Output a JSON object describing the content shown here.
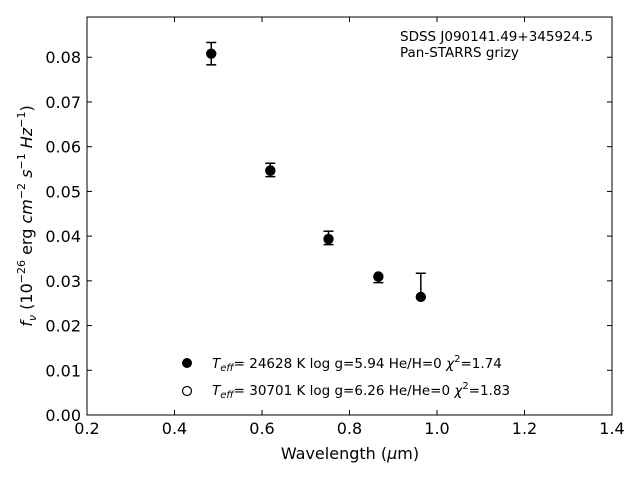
{
  "chart_data": {
    "type": "scatter",
    "title": "",
    "annotation": [
      "SDSS J090141.49+345924.5",
      "Pan-STARRS grizy"
    ],
    "xlabel": "Wavelength (μm)",
    "ylabel": "f_ν (10^-26 erg cm^-2 s^-1 Hz^-1)",
    "xlim": [
      0.2,
      1.4
    ],
    "ylim": [
      0.0,
      0.089
    ],
    "xticks": [
      "0.2",
      "0.4",
      "0.6",
      "0.8",
      "1.0",
      "1.2",
      "1.4"
    ],
    "xtick_values": [
      0.2,
      0.4,
      0.6,
      0.8,
      1.0,
      1.2,
      1.4
    ],
    "yticks": [
      "0.00",
      "0.01",
      "0.02",
      "0.03",
      "0.04",
      "0.05",
      "0.06",
      "0.07",
      "0.08"
    ],
    "ytick_values": [
      0.0,
      0.01,
      0.02,
      0.03,
      0.04,
      0.05,
      0.06,
      0.07,
      0.08
    ],
    "grid": false,
    "legend_position": "lower-center",
    "observed": {
      "x": [
        0.484,
        0.619,
        0.752,
        0.866,
        0.963
      ],
      "y": [
        0.0808,
        0.0548,
        0.0396,
        0.0311,
        0.0265
      ],
      "yerr_low": [
        0.0025,
        0.0015,
        0.0015,
        0.0015,
        0.0
      ],
      "yerr_high": [
        0.0025,
        0.0015,
        0.0015,
        0.0,
        0.0052
      ]
    },
    "series": [
      {
        "marker": "filled-circle",
        "label": "T_eff= 24628 K  log g=5.94  He/H=0  χ²=1.74",
        "x": [
          0.484,
          0.619,
          0.752,
          0.866,
          0.963
        ],
        "y": [
          0.0808,
          0.0546,
          0.0393,
          0.0309,
          0.0264
        ]
      },
      {
        "marker": "open-circle",
        "label": "T_eff= 30701 K  log g=6.26  He/He=0  χ²=1.83",
        "x": [
          0.484,
          0.619,
          0.752,
          0.866,
          0.963
        ],
        "y": [
          0.0808,
          0.0547,
          0.0394,
          0.031,
          0.0264
        ]
      }
    ]
  }
}
